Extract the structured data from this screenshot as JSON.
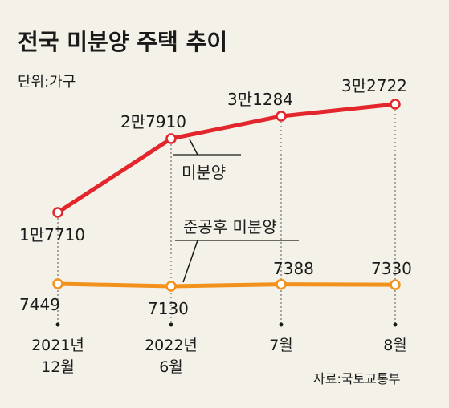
{
  "chart_data": {
    "type": "line",
    "title": "전국 미분양 주택 추이",
    "unit_label": "단위:가구",
    "source": "자료:국토교통부",
    "categories": [
      [
        "2021년",
        "12월"
      ],
      [
        "2022년",
        "6월"
      ],
      [
        "7월"
      ],
      [
        "8월"
      ]
    ],
    "series": [
      {
        "name": "미분양",
        "color": "#e3262b",
        "values": [
          17710,
          27910,
          31284,
          32722
        ],
        "value_labels": [
          "1만7710",
          "2만7910",
          "3만1284",
          "3만2722"
        ]
      },
      {
        "name": "준공후 미분양",
        "color": "#f2911b",
        "values": [
          7449,
          7130,
          7388,
          7330
        ],
        "value_labels": [
          "7449",
          "7130",
          "7388",
          "7330"
        ]
      }
    ]
  }
}
